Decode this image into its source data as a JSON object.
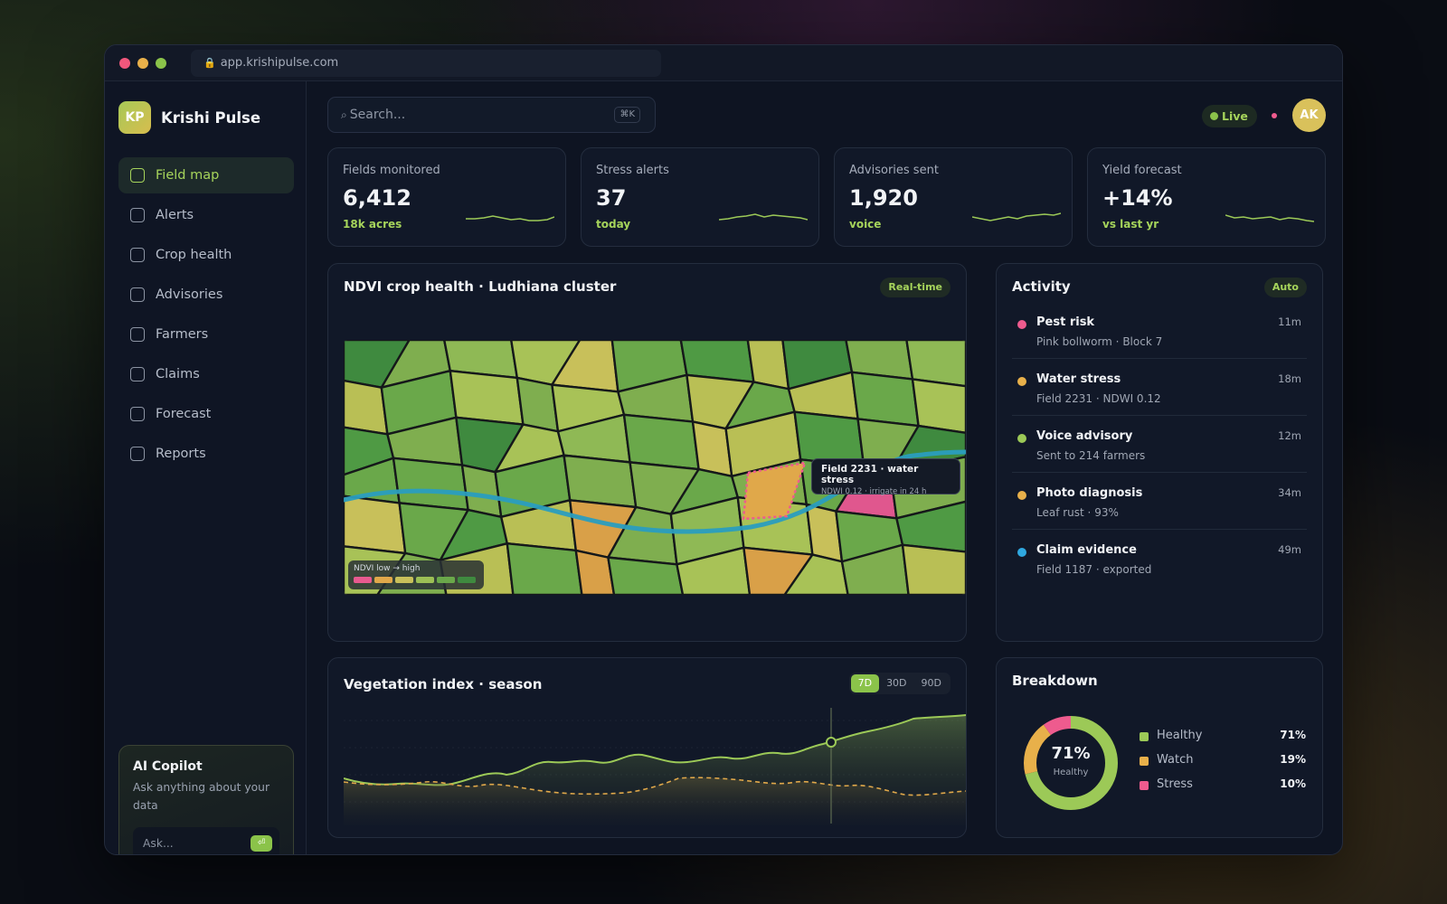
{
  "browser": {
    "url": "app.krishipulse.com"
  },
  "brand": {
    "initials": "KP",
    "name": "Krishi Pulse"
  },
  "nav": [
    {
      "label": "Field map",
      "active": true
    },
    {
      "label": "Alerts"
    },
    {
      "label": "Crop health"
    },
    {
      "label": "Advisories"
    },
    {
      "label": "Farmers"
    },
    {
      "label": "Claims"
    },
    {
      "label": "Forecast"
    },
    {
      "label": "Reports"
    }
  ],
  "copilot": {
    "title": "AI Copilot",
    "subtitle": "Ask anything about your data",
    "placeholder": "Ask...",
    "send_glyph": "⏎"
  },
  "search": {
    "placeholder": "Search...",
    "shortcut": "⌘K"
  },
  "header": {
    "live_label": "Live",
    "avatar_initials": "AK"
  },
  "kpis": [
    {
      "label": "Fields monitored",
      "value": "6,412",
      "sub": "18k acres"
    },
    {
      "label": "Stress alerts",
      "value": "37",
      "sub": "today"
    },
    {
      "label": "Advisories sent",
      "value": "1,920",
      "sub": "voice"
    },
    {
      "label": "Yield forecast",
      "value": "+14%",
      "sub": "vs last yr"
    }
  ],
  "map_panel": {
    "title": "NDVI crop health · Ludhiana cluster",
    "badge": "Real-time",
    "tooltip_title": "Field 2231 · water stress",
    "tooltip_sub": "NDWI 0.12 · irrigate in 24 h",
    "legend_label": "NDVI low → high",
    "legend_colors": [
      "#e85a8f",
      "#e0a84a",
      "#c8c05a",
      "#9cbf55",
      "#6aa84a",
      "#3f8a3f"
    ]
  },
  "activity": {
    "title": "Activity",
    "badge": "Auto",
    "items": [
      {
        "title": "Pest risk",
        "sub": "Pink bollworm · Block 7",
        "time": "11m",
        "color": "#ee5b8e"
      },
      {
        "title": "Water stress",
        "sub": "Field 2231 · NDWI 0.12",
        "time": "18m",
        "color": "#e8b04a"
      },
      {
        "title": "Voice advisory",
        "sub": "Sent to 214 farmers",
        "time": "12m",
        "color": "#9cc957"
      },
      {
        "title": "Photo diagnosis",
        "sub": "Leaf rust · 93%",
        "time": "34m",
        "color": "#e8b04a"
      },
      {
        "title": "Claim evidence",
        "sub": "Field 1187 · exported",
        "time": "49m",
        "color": "#2fa8e0"
      }
    ]
  },
  "vegetation": {
    "title": "Vegetation index · season",
    "ranges": [
      "7D",
      "30D",
      "90D"
    ],
    "active_range": "7D"
  },
  "breakdown": {
    "title": "Breakdown",
    "center_value": "71%",
    "center_label": "Healthy",
    "segments": [
      {
        "label": "Healthy",
        "value": "71%",
        "pct": 71,
        "color": "#9cc957"
      },
      {
        "label": "Watch",
        "value": "19%",
        "pct": 19,
        "color": "#e8b04a"
      },
      {
        "label": "Stress",
        "value": "10%",
        "pct": 10,
        "color": "#ee5b8e"
      }
    ]
  }
}
